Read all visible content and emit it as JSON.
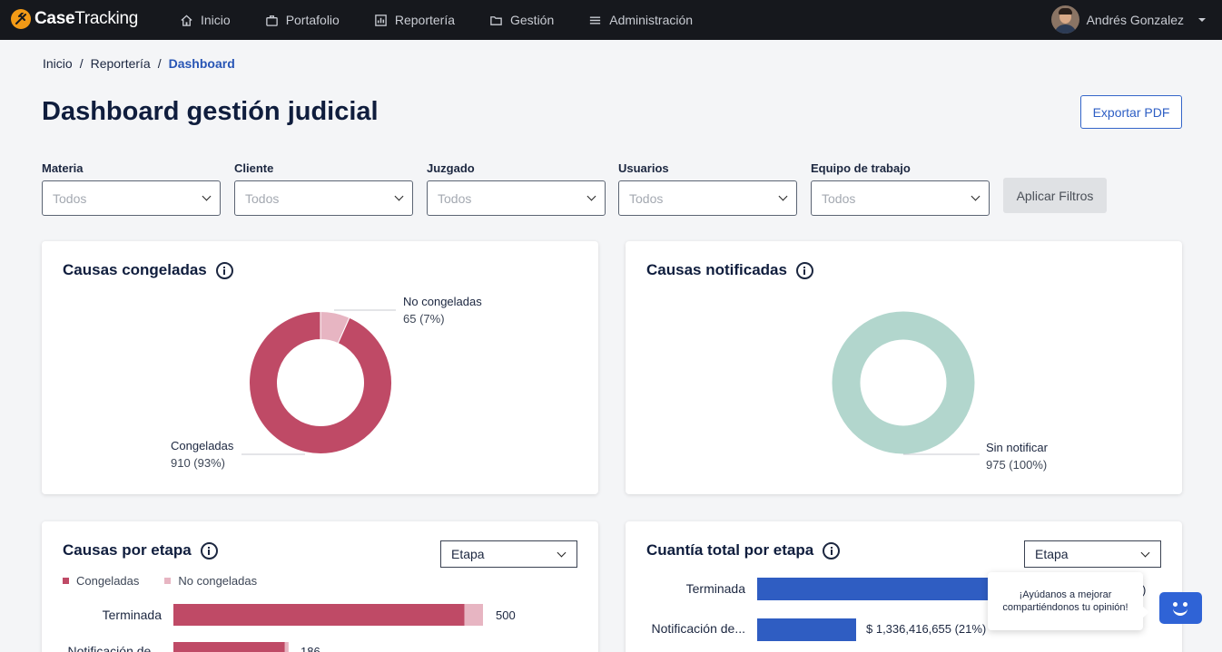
{
  "app": {
    "brand_bold": "Case",
    "brand_light": "Tracking",
    "nav": [
      {
        "label": "Inicio",
        "icon": "home-icon"
      },
      {
        "label": "Portafolio",
        "icon": "briefcase-icon"
      },
      {
        "label": "Reportería",
        "icon": "bar-chart-icon"
      },
      {
        "label": "Gestión",
        "icon": "folder-icon"
      },
      {
        "label": "Administración",
        "icon": "menu-icon"
      }
    ],
    "user_name": "Andrés Gonzalez"
  },
  "breadcrumb": [
    "Inicio",
    "Reportería",
    "Dashboard"
  ],
  "page_title": "Dashboard gestión judicial",
  "export_label": "Exportar PDF",
  "filters": [
    {
      "label": "Materia",
      "value": "Todos"
    },
    {
      "label": "Cliente",
      "value": "Todos"
    },
    {
      "label": "Juzgado",
      "value": "Todos"
    },
    {
      "label": "Usuarios",
      "value": "Todos"
    },
    {
      "label": "Equipo de trabajo",
      "value": "Todos"
    }
  ],
  "apply_label": "Aplicar Filtros",
  "colors": {
    "congeladas": "#bf4a66",
    "no_congeladas": "#e7b5c2",
    "sin_notificar": "#b2d6cd",
    "cuantia": "#2f5dc2"
  },
  "cards": {
    "congeladas": {
      "title": "Causas congeladas",
      "labels": [
        {
          "name": "No congeladas",
          "value": "65 (7%)"
        },
        {
          "name": "Congeladas",
          "value": "910 (93%)"
        }
      ]
    },
    "notificadas": {
      "title": "Causas notificadas",
      "labels": [
        {
          "name": "Sin notificar",
          "value": "975 (100%)"
        }
      ]
    },
    "etapa": {
      "title": "Causas por etapa",
      "select": "Etapa",
      "legend": [
        "Congeladas",
        "No congeladas"
      ],
      "rows": [
        {
          "label": "Terminada",
          "total": "500"
        },
        {
          "label": "Notificación de...",
          "total": "186"
        }
      ]
    },
    "cuantia": {
      "title": "Cuantía total por etapa",
      "select": "Etapa",
      "rows": [
        {
          "label": "Terminada",
          "value": ")"
        },
        {
          "label": "Notificación de...",
          "value": "$ 1,336,416,655 (21%)"
        }
      ]
    }
  },
  "feedback_text": "¡Ayúdanos a mejorar compartiéndonos tu opinión!",
  "chart_data": [
    {
      "type": "pie",
      "title": "Causas congeladas",
      "categories": [
        "Congeladas",
        "No congeladas"
      ],
      "values": [
        910,
        65
      ]
    },
    {
      "type": "pie",
      "title": "Causas notificadas",
      "categories": [
        "Sin notificar"
      ],
      "values": [
        975
      ]
    },
    {
      "type": "bar",
      "title": "Causas por etapa",
      "categories": [
        "Terminada",
        "Notificación de..."
      ],
      "series": [
        {
          "name": "Congeladas",
          "values": [
            470,
            180
          ]
        },
        {
          "name": "No congeladas",
          "values": [
            30,
            6
          ]
        }
      ],
      "totals": [
        500,
        186
      ]
    },
    {
      "type": "bar",
      "title": "Cuantía total por etapa",
      "categories": [
        "Terminada",
        "Notificación de..."
      ],
      "values": [
        null,
        1336416655
      ],
      "percent": [
        null,
        21
      ]
    }
  ]
}
